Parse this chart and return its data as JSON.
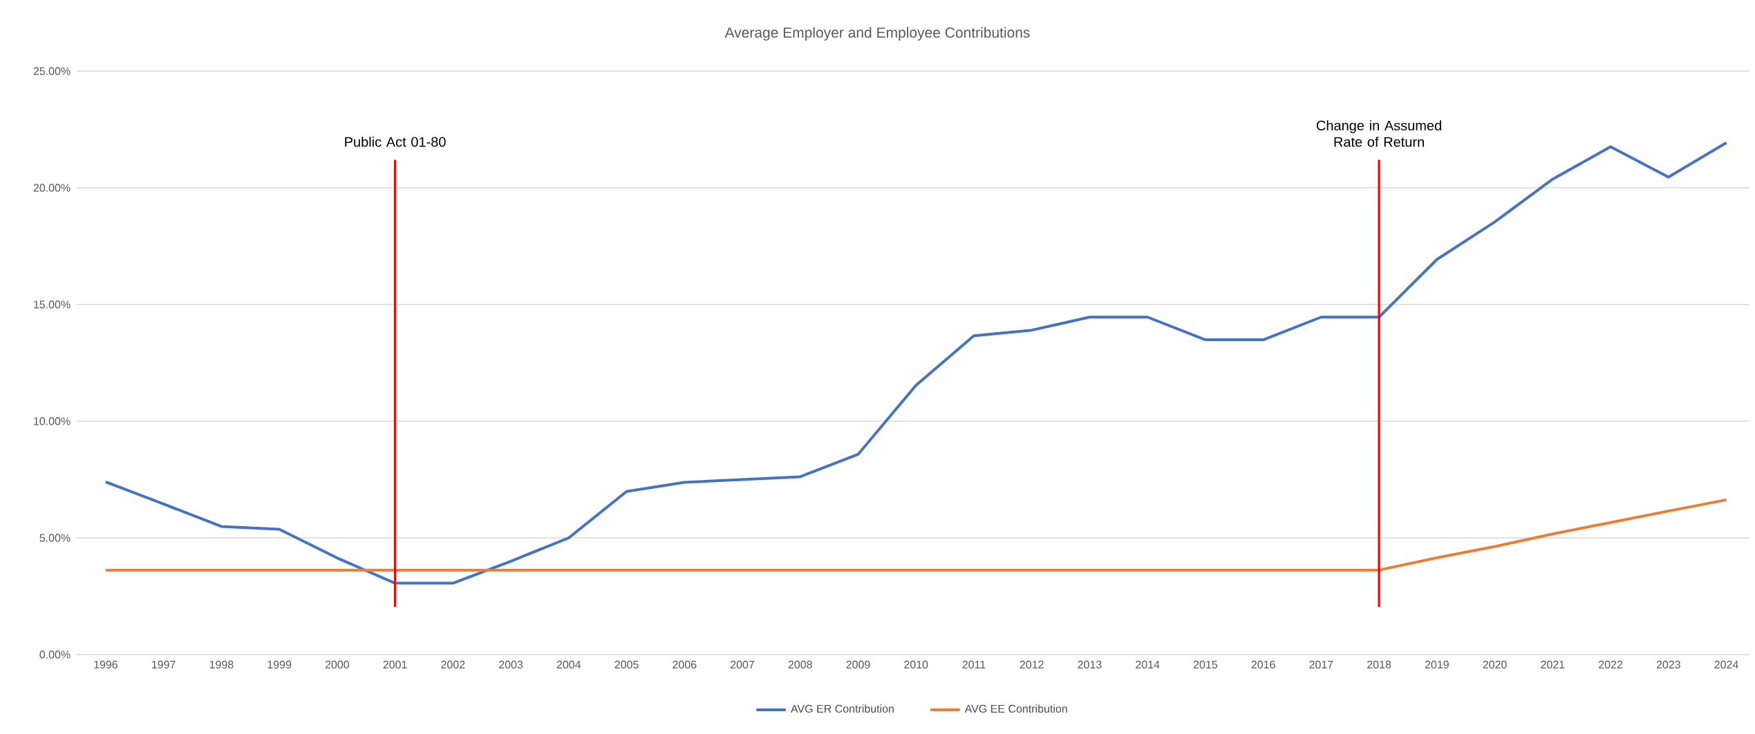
{
  "chart_data": {
    "type": "line",
    "title": "Average Employer and Employee Contributions",
    "x": [
      1996,
      1997,
      1998,
      1999,
      2000,
      2001,
      2002,
      2003,
      2004,
      2005,
      2006,
      2007,
      2008,
      2009,
      2010,
      2011,
      2012,
      2013,
      2014,
      2015,
      2016,
      2017,
      2018,
      2019,
      2020,
      2021,
      2022,
      2023,
      2024
    ],
    "series": [
      {
        "name": "AVG ER Contribution",
        "color": "#4472c4",
        "values": [
          7.4,
          6.45,
          5.49,
          5.37,
          4.14,
          3.06,
          3.06,
          4.0,
          5.0,
          6.99,
          7.38,
          7.5,
          7.62,
          8.58,
          11.54,
          13.66,
          13.9,
          14.46,
          14.46,
          13.49,
          13.49,
          14.46,
          14.46,
          16.93,
          18.54,
          20.37,
          21.76,
          20.46,
          21.93
        ]
      },
      {
        "name": "AVG EE Contribution",
        "color": "#ed7d31",
        "values": [
          3.62,
          3.62,
          3.62,
          3.62,
          3.62,
          3.62,
          3.62,
          3.62,
          3.62,
          3.62,
          3.62,
          3.62,
          3.62,
          3.62,
          3.62,
          3.62,
          3.62,
          3.62,
          3.62,
          3.62,
          3.62,
          3.62,
          3.62,
          4.15,
          4.63,
          5.17,
          5.66,
          6.15,
          6.63
        ]
      }
    ],
    "xlim": [
      1995.5,
      2024.4
    ],
    "xticks": [
      1996,
      1997,
      1998,
      1999,
      2000,
      2001,
      2002,
      2003,
      2004,
      2005,
      2006,
      2007,
      2008,
      2009,
      2010,
      2011,
      2012,
      2013,
      2014,
      2015,
      2016,
      2017,
      2018,
      2019,
      2020,
      2021,
      2022,
      2023,
      2024
    ],
    "ylim": [
      0,
      25
    ],
    "yticks": [
      {
        "value": 0,
        "label": "0.00%"
      },
      {
        "value": 5,
        "label": "5.00%"
      },
      {
        "value": 10,
        "label": "10.00%"
      },
      {
        "value": 15,
        "label": "15.00%"
      },
      {
        "value": 20,
        "label": "20.00%"
      },
      {
        "value": 25,
        "label": "25.00%"
      }
    ],
    "ref_lines": [
      {
        "axis": "x",
        "value": 2001,
        "label": "Public Act 01-80",
        "color": "#ff0000"
      },
      {
        "axis": "x",
        "value": 2018,
        "label": "Change in Assumed Rate of Return",
        "color": "#ff0000"
      }
    ],
    "grid": "y",
    "legend": "bottom",
    "line_style": "solid"
  }
}
